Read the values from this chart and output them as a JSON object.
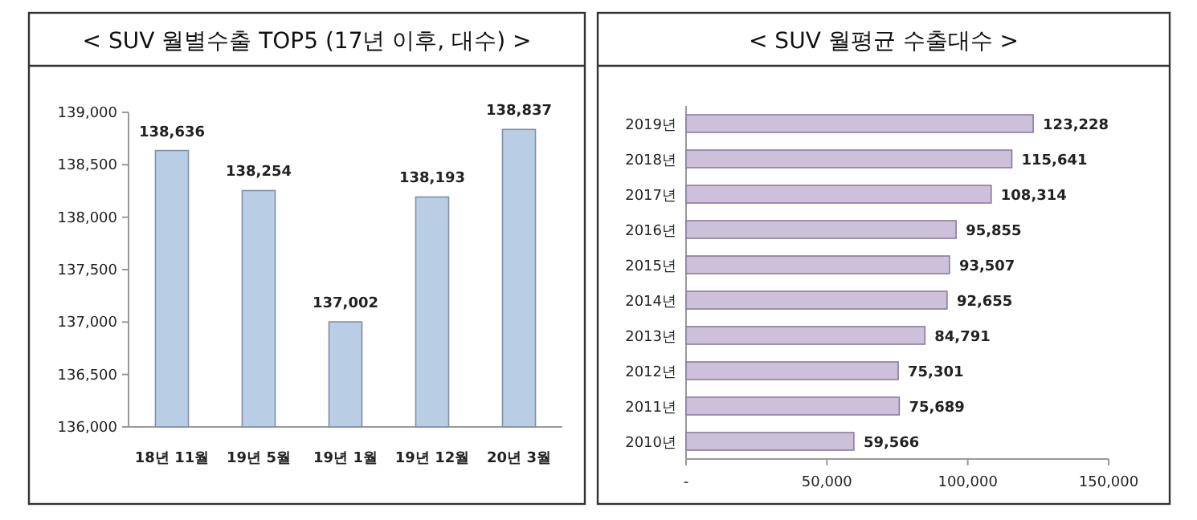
{
  "chart_data": [
    {
      "type": "bar",
      "title": "< SUV 월별수출 TOP5 (17년 이후, 대수) >",
      "categories": [
        "18년 11월",
        "19년 5월",
        "19년 1월",
        "19년 12월",
        "20년 3월"
      ],
      "values": [
        138636,
        138254,
        137002,
        138193,
        138837
      ],
      "value_labels": [
        "138,636",
        "138,254",
        "137,002",
        "138,193",
        "138,837"
      ],
      "colors": [
        "#b9cde5",
        "#b9cde5",
        "#b9cde5",
        "#b9cde5",
        "#b9cde5"
      ],
      "ylim": [
        136000,
        139000
      ],
      "yticks": [
        {
          "value": 136000,
          "label": "136,000"
        },
        {
          "value": 136500,
          "label": "136,500"
        },
        {
          "value": 137000,
          "label": "137,000"
        },
        {
          "value": 137500,
          "label": "137,500"
        },
        {
          "value": 138000,
          "label": "138,000"
        },
        {
          "value": 138500,
          "label": "138,500"
        },
        {
          "value": 139000,
          "label": "139,000"
        }
      ]
    },
    {
      "type": "bar",
      "orientation": "horizontal",
      "title": "< SUV 월평균 수출대수 >",
      "categories": [
        "2019년",
        "2018년",
        "2017년",
        "2016년",
        "2015년",
        "2014년",
        "2013년",
        "2012년",
        "2011년",
        "2010년"
      ],
      "values": [
        123228,
        115641,
        108314,
        95855,
        93507,
        92655,
        84791,
        75301,
        75689,
        59566
      ],
      "value_labels": [
        "123,228",
        "115,641",
        "108,314",
        "95,855",
        "93,507",
        "92,655",
        "84,791",
        "75,301",
        "75,689",
        "59,566"
      ],
      "colors": [
        "#ccc0da",
        "#ccc0da",
        "#ccc0da",
        "#ccc0da",
        "#ccc0da",
        "#ccc0da",
        "#ccc0da",
        "#ccc0da",
        "#ccc0da",
        "#ccc0da"
      ],
      "xlim": [
        0,
        150000
      ],
      "xticks": [
        {
          "value": 0,
          "label": "-"
        },
        {
          "value": 50000,
          "label": "50,000"
        },
        {
          "value": 100000,
          "label": "100,000"
        },
        {
          "value": 150000,
          "label": "150,000"
        }
      ]
    }
  ]
}
